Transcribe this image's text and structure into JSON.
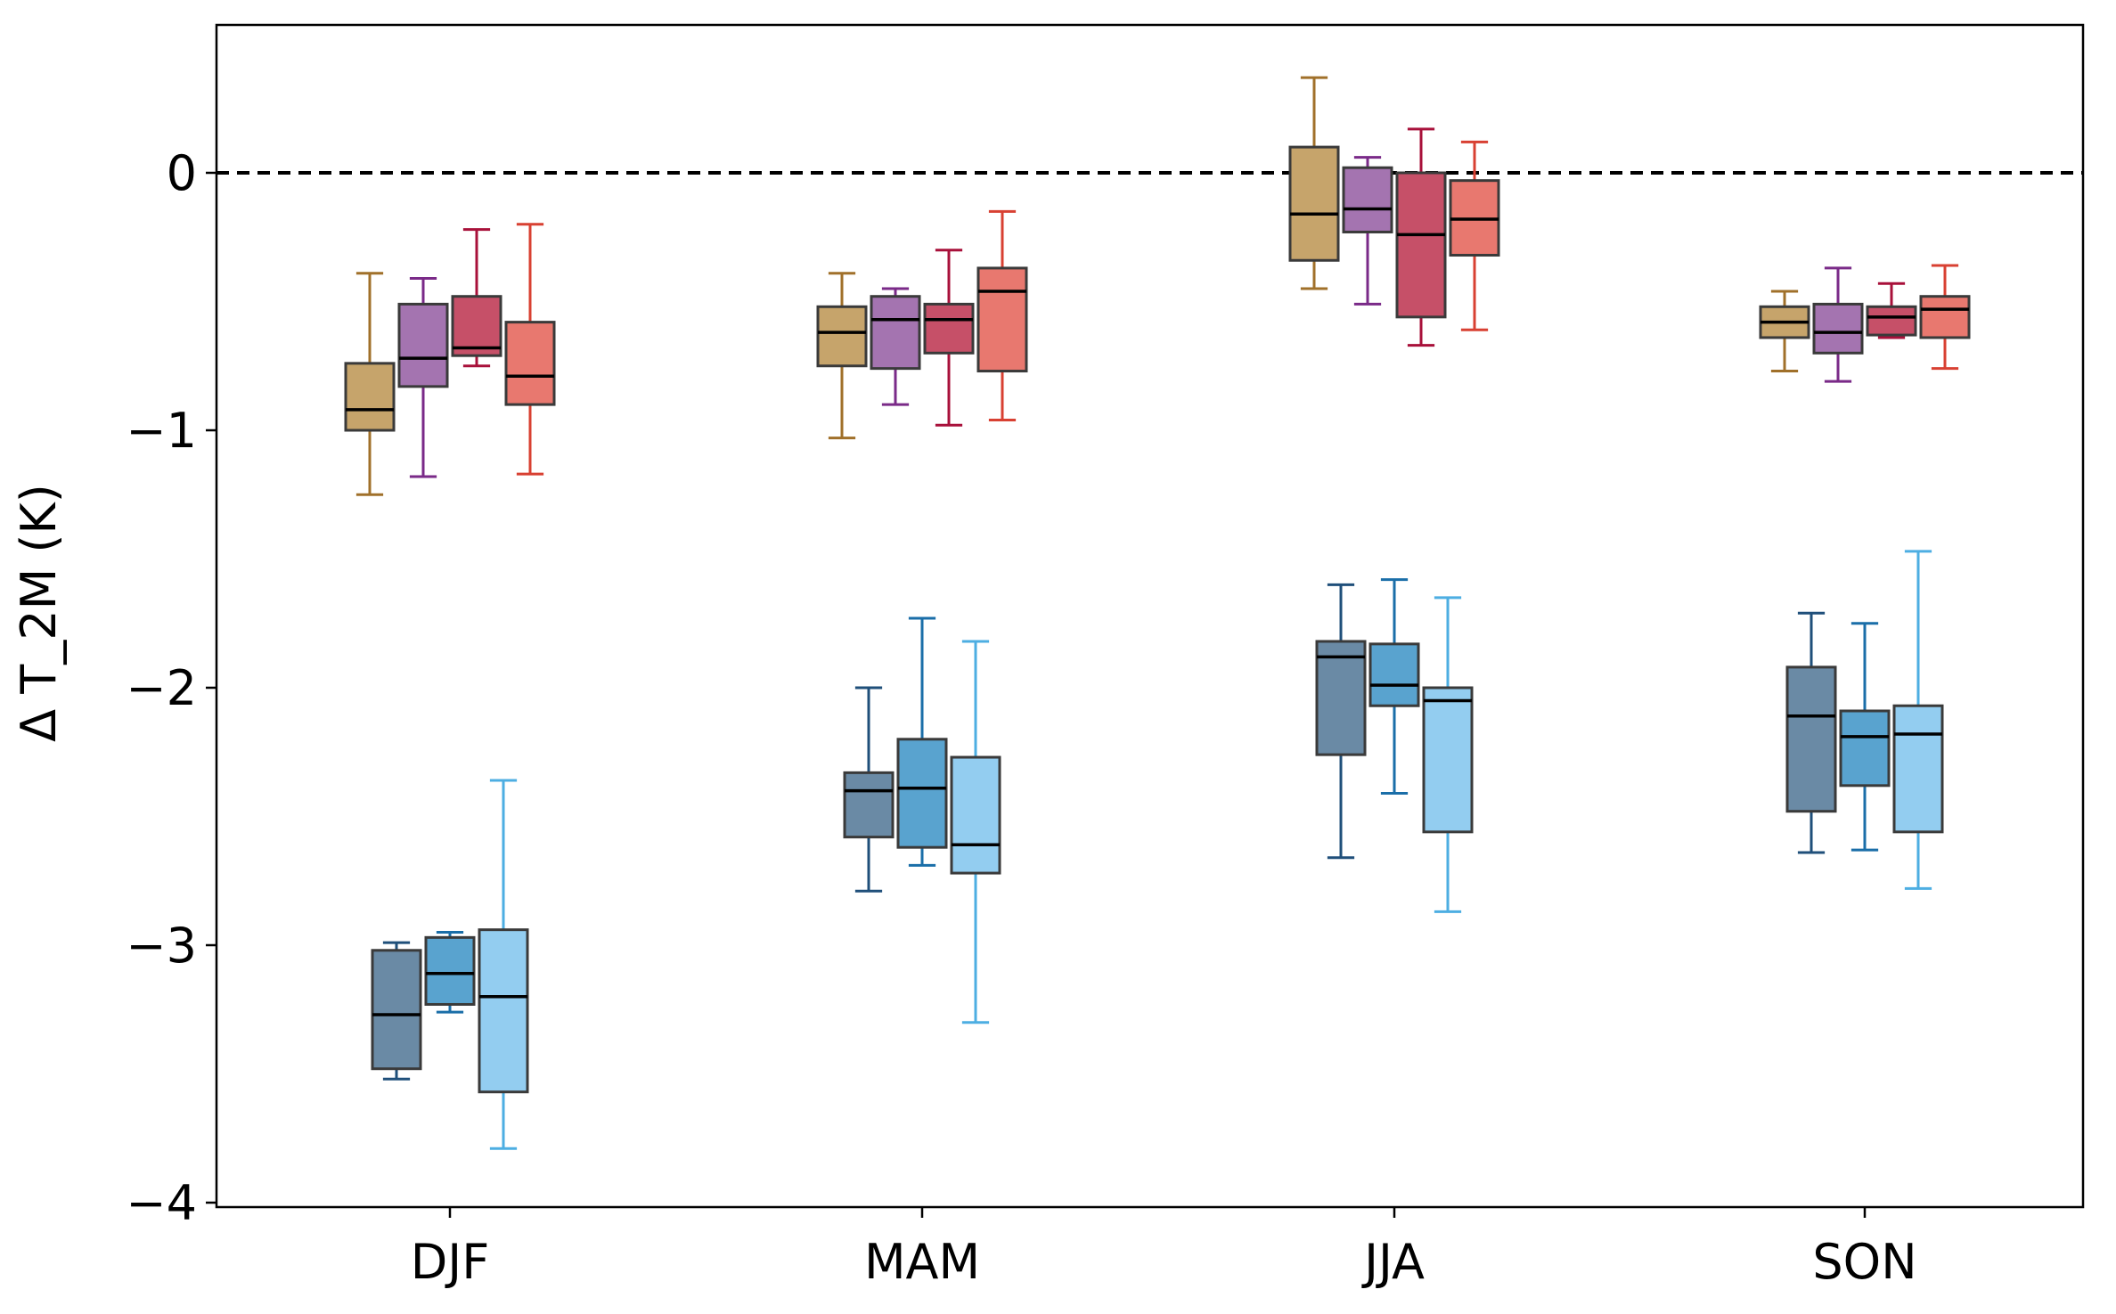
{
  "chart_data": {
    "type": "box",
    "title": "",
    "xlabel": "",
    "ylabel": "Δ T_2M (K)",
    "ylim": [
      -4.0,
      0.58
    ],
    "yticks": [
      0,
      -1,
      -2,
      -3,
      -4
    ],
    "ytick_labels": [
      "0",
      "−1",
      "−2",
      "−3",
      "−4"
    ],
    "categories": [
      "DJF",
      "MAM",
      "JJA",
      "SON"
    ],
    "reference_line": 0,
    "legend": "none",
    "series": [
      {
        "name": "blue-1",
        "color": "#1f4f7a",
        "fill": "#6a8aa5",
        "offset": -1,
        "boxes": [
          {
            "whislo": -3.52,
            "q1": -3.48,
            "med": -3.27,
            "q3": -3.02,
            "whishi": -2.99
          },
          {
            "whislo": -2.79,
            "q1": -2.58,
            "med": -2.4,
            "q3": -2.33,
            "whishi": -2.0
          },
          {
            "whislo": -2.66,
            "q1": -2.26,
            "med": -1.88,
            "q3": -1.82,
            "whishi": -1.6
          },
          {
            "whislo": -2.64,
            "q1": -2.48,
            "med": -2.11,
            "q3": -1.92,
            "whishi": -1.71
          }
        ]
      },
      {
        "name": "blue-2",
        "color": "#1a6ea8",
        "fill": "#59a3cf",
        "offset": 0,
        "boxes": [
          {
            "whislo": -3.26,
            "q1": -3.23,
            "med": -3.11,
            "q3": -2.97,
            "whishi": -2.95
          },
          {
            "whislo": -2.69,
            "q1": -2.62,
            "med": -2.39,
            "q3": -2.2,
            "whishi": -1.73
          },
          {
            "whislo": -2.41,
            "q1": -2.07,
            "med": -1.99,
            "q3": -1.83,
            "whishi": -1.58
          },
          {
            "whislo": -2.63,
            "q1": -2.38,
            "med": -2.19,
            "q3": -2.09,
            "whishi": -1.75
          }
        ]
      },
      {
        "name": "blue-3",
        "color": "#4daee2",
        "fill": "#93cdf0",
        "offset": 1,
        "boxes": [
          {
            "whislo": -3.79,
            "q1": -3.57,
            "med": -3.2,
            "q3": -2.94,
            "whishi": -2.36
          },
          {
            "whislo": -3.3,
            "q1": -2.72,
            "med": -2.61,
            "q3": -2.27,
            "whishi": -1.82
          },
          {
            "whislo": -2.87,
            "q1": -2.56,
            "med": -2.05,
            "q3": -2.0,
            "whishi": -1.65
          },
          {
            "whislo": -2.78,
            "q1": -2.56,
            "med": -2.18,
            "q3": -2.07,
            "whishi": -1.47
          }
        ]
      },
      {
        "name": "warm-1",
        "color": "#a0702a",
        "fill": "#c6a46b",
        "offset": -1.5,
        "boxes": [
          {
            "whislo": -1.25,
            "q1": -1.0,
            "med": -0.92,
            "q3": -0.74,
            "whishi": -0.39
          },
          {
            "whislo": -1.03,
            "q1": -0.75,
            "med": -0.62,
            "q3": -0.52,
            "whishi": -0.39
          },
          {
            "whislo": -0.45,
            "q1": -0.34,
            "med": -0.16,
            "q3": 0.1,
            "whishi": 0.37
          },
          {
            "whislo": -0.77,
            "q1": -0.64,
            "med": -0.58,
            "q3": -0.52,
            "whishi": -0.46
          }
        ]
      },
      {
        "name": "warm-2",
        "color": "#7a2a88",
        "fill": "#a474b0",
        "offset": -0.5,
        "boxes": [
          {
            "whislo": -1.18,
            "q1": -0.83,
            "med": -0.72,
            "q3": -0.51,
            "whishi": -0.41
          },
          {
            "whislo": -0.9,
            "q1": -0.76,
            "med": -0.57,
            "q3": -0.48,
            "whishi": -0.45
          },
          {
            "whislo": -0.51,
            "q1": -0.23,
            "med": -0.14,
            "q3": 0.02,
            "whishi": 0.06
          },
          {
            "whislo": -0.81,
            "q1": -0.7,
            "med": -0.62,
            "q3": -0.51,
            "whishi": -0.37
          }
        ]
      },
      {
        "name": "warm-3",
        "color": "#a8103a",
        "fill": "#c65068",
        "offset": 0.5,
        "boxes": [
          {
            "whislo": -0.75,
            "q1": -0.71,
            "med": -0.68,
            "q3": -0.48,
            "whishi": -0.22
          },
          {
            "whislo": -0.98,
            "q1": -0.7,
            "med": -0.57,
            "q3": -0.51,
            "whishi": -0.3
          },
          {
            "whislo": -0.67,
            "q1": -0.56,
            "med": -0.24,
            "q3": 0.0,
            "whishi": 0.17
          },
          {
            "whislo": -0.64,
            "q1": -0.63,
            "med": -0.56,
            "q3": -0.52,
            "whishi": -0.43
          }
        ]
      },
      {
        "name": "warm-4",
        "color": "#d84032",
        "fill": "#e8786f",
        "offset": 1.5,
        "boxes": [
          {
            "whislo": -1.17,
            "q1": -0.9,
            "med": -0.79,
            "q3": -0.58,
            "whishi": -0.2
          },
          {
            "whislo": -0.96,
            "q1": -0.77,
            "med": -0.46,
            "q3": -0.37,
            "whishi": -0.15
          },
          {
            "whislo": -0.61,
            "q1": -0.32,
            "med": -0.18,
            "q3": -0.03,
            "whishi": 0.12
          },
          {
            "whislo": -0.76,
            "q1": -0.64,
            "med": -0.53,
            "q3": -0.48,
            "whishi": -0.36
          }
        ]
      }
    ]
  }
}
